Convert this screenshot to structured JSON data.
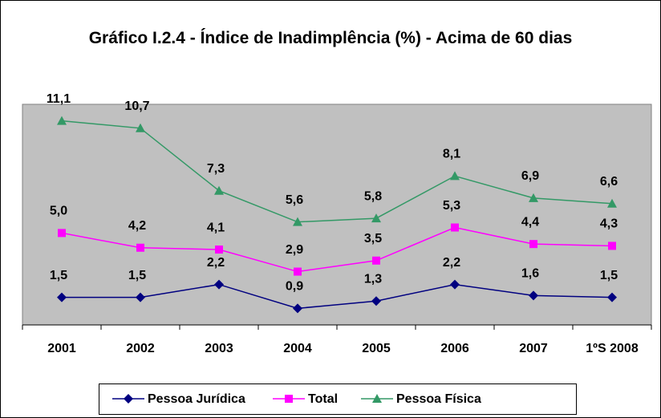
{
  "chart_data": {
    "type": "line",
    "title": "Gráfico I.2.4 - Índice de Inadimplência (%) - Acima de 60 dias",
    "categories": [
      "2001",
      "2002",
      "2003",
      "2004",
      "2005",
      "2006",
      "2007",
      "1ºS 2008"
    ],
    "ylim": [
      0,
      12
    ],
    "legend": "bottom",
    "series": [
      {
        "name": "Pessoa Jurídica",
        "color": "#000080",
        "marker": "diamond",
        "values": [
          1.5,
          1.5,
          2.2,
          0.9,
          1.3,
          2.2,
          1.6,
          1.5
        ],
        "value_labels": [
          "1,5",
          "1,5",
          "2,2",
          "0,9",
          "1,3",
          "2,2",
          "1,6",
          "1,5"
        ]
      },
      {
        "name": "Total",
        "color": "#ff00ff",
        "marker": "square",
        "values": [
          5.0,
          4.2,
          4.1,
          2.9,
          3.5,
          5.3,
          4.4,
          4.3
        ],
        "value_labels": [
          "5,0",
          "4,2",
          "4,1",
          "2,9",
          "3,5",
          "5,3",
          "4,4",
          "4,3"
        ]
      },
      {
        "name": "Pessoa Física",
        "color": "#339966",
        "marker": "triangle",
        "values": [
          11.1,
          10.7,
          7.3,
          5.6,
          5.8,
          8.1,
          6.9,
          6.6
        ],
        "value_labels": [
          "11,1",
          "10,7",
          "7,3",
          "5,6",
          "5,8",
          "8,1",
          "6,9",
          "6,6"
        ]
      }
    ]
  }
}
